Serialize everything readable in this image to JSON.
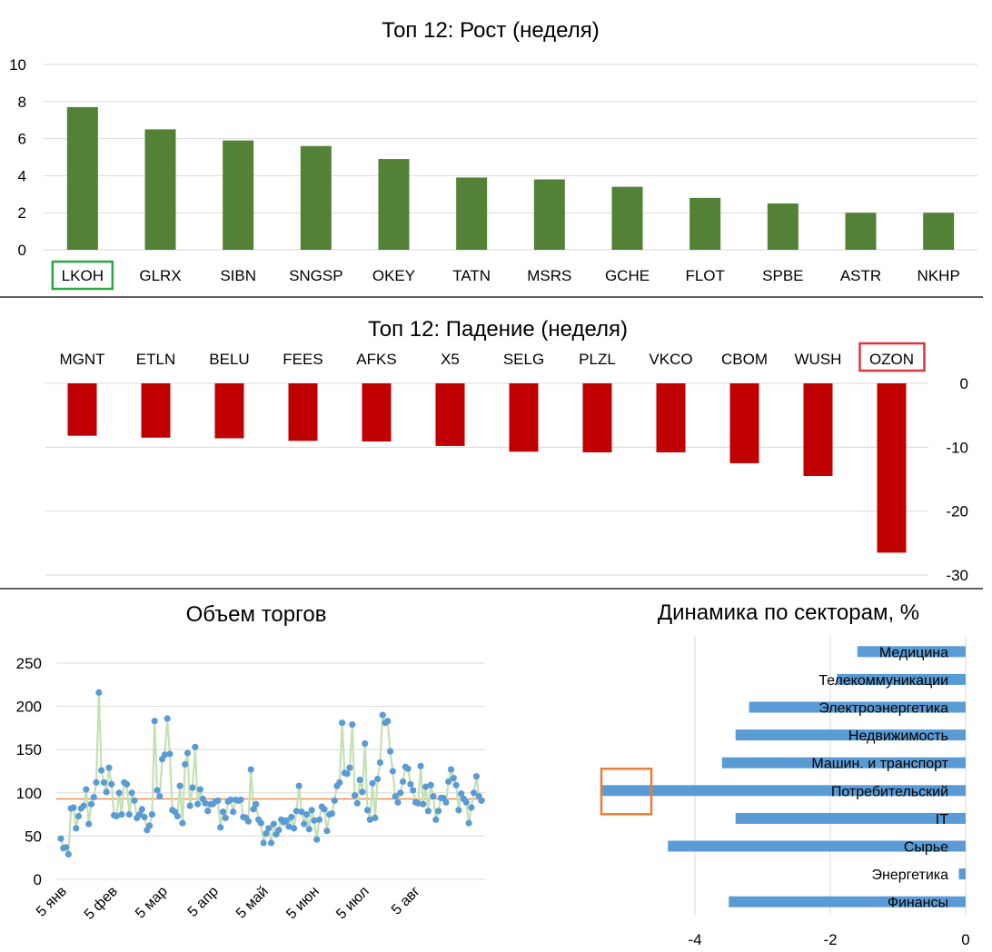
{
  "colors": {
    "growth_bar": "#538135",
    "fall_bar": "#c00000",
    "volume_line": "#c5e0b4",
    "volume_point": "#5b9bd5",
    "volume_avg": "#ed7d31",
    "sector_bar": "#5b9bd5",
    "highlight_green": "#28a745",
    "highlight_red": "#d9363e",
    "highlight_orange": "#ed7d31",
    "grid": "#d9d9d9"
  },
  "chart_data": [
    {
      "type": "bar",
      "title": "Топ 12: Рост (неделя)",
      "categories": [
        "LKOH",
        "GLRX",
        "SIBN",
        "SNGSP",
        "OKEY",
        "TATN",
        "MSRS",
        "GCHE",
        "FLOT",
        "SPBE",
        "ASTR",
        "NKHP"
      ],
      "values": [
        7.7,
        6.5,
        5.9,
        5.6,
        4.9,
        3.9,
        3.8,
        3.4,
        2.8,
        2.5,
        2.0,
        2.0
      ],
      "ylim": [
        0,
        10
      ],
      "yticks": [
        "0",
        "2",
        "4",
        "6",
        "8",
        "10"
      ],
      "highlight": "LKOH",
      "grid": true
    },
    {
      "type": "bar",
      "title": "Топ 12: Падение (неделя)",
      "categories": [
        "MGNT",
        "ETLN",
        "BELU",
        "FEES",
        "AFKS",
        "X5",
        "SELG",
        "PLZL",
        "VKCO",
        "CBOM",
        "WUSH",
        "OZON"
      ],
      "values": [
        -8.2,
        -8.5,
        -8.6,
        -9.0,
        -9.1,
        -9.8,
        -10.7,
        -10.8,
        -10.8,
        -12.5,
        -14.5,
        -26.5
      ],
      "ylim": [
        -30,
        0
      ],
      "yticks": [
        "0",
        "-10",
        "-20",
        "-30"
      ],
      "highlight": "OZON",
      "grid": true
    },
    {
      "type": "line",
      "title": "Объем торгов",
      "yticks": [
        "0",
        "50",
        "100",
        "150",
        "200",
        "250"
      ],
      "ylim": [
        0,
        250
      ],
      "x_labels": [
        "5 янв",
        "5 фев",
        "5 мар",
        "5 апр",
        "5 май",
        "5 июн",
        "5 июл",
        "5 авг"
      ],
      "average": 93,
      "grid": true,
      "values": [
        47,
        36,
        37,
        29,
        82,
        83,
        59,
        73,
        82,
        85,
        104,
        64,
        87,
        95,
        112,
        216,
        126,
        112,
        101,
        129,
        110,
        74,
        73,
        100,
        75,
        112,
        110,
        75,
        100,
        91,
        71,
        75,
        81,
        72,
        57,
        62,
        75,
        183,
        103,
        96,
        139,
        144,
        186,
        145,
        80,
        78,
        73,
        108,
        65,
        133,
        146,
        85,
        106,
        153,
        87,
        104,
        93,
        88,
        79,
        87,
        87,
        90,
        91,
        60,
        78,
        71,
        90,
        92,
        78,
        92,
        91,
        92,
        72,
        71,
        67,
        127,
        81,
        87,
        69,
        65,
        42,
        53,
        59,
        42,
        64,
        52,
        57,
        69,
        66,
        68,
        61,
        72,
        59,
        79,
        108,
        78,
        64,
        75,
        58,
        80,
        68,
        46,
        69,
        84,
        81,
        56,
        75,
        76,
        91,
        108,
        112,
        181,
        123,
        122,
        129,
        179,
        97,
        88,
        115,
        101,
        157,
        80,
        69,
        111,
        71,
        116,
        135,
        190,
        181,
        183,
        148,
        125,
        96,
        89,
        100,
        113,
        130,
        128,
        110,
        103,
        89,
        88,
        131,
        87,
        107,
        79,
        109,
        96,
        69,
        79,
        94,
        94,
        89,
        113,
        127,
        117,
        109,
        80,
        99,
        93,
        89,
        65,
        83,
        100,
        119,
        96,
        91
      ],
      "xlabel": "",
      "ylabel": ""
    },
    {
      "type": "bar",
      "orientation": "horizontal",
      "title": "Динамика по секторам, %",
      "categories": [
        "Медицина",
        "Телекоммуникации",
        "Электроэнергетика",
        "Недвижимость",
        "Машин. и транспорт",
        "Потребительский",
        "IT",
        "Сырье",
        "Энергетика",
        "Финансы"
      ],
      "values": [
        -1.6,
        -1.9,
        -3.2,
        -3.4,
        -3.6,
        -5.4,
        -3.4,
        -4.4,
        -0.1,
        -3.5
      ],
      "xlim": [
        -5.5,
        0
      ],
      "xticks": [
        "-4",
        "-2",
        "0"
      ],
      "highlight": "Потребительский",
      "grid": true
    }
  ]
}
